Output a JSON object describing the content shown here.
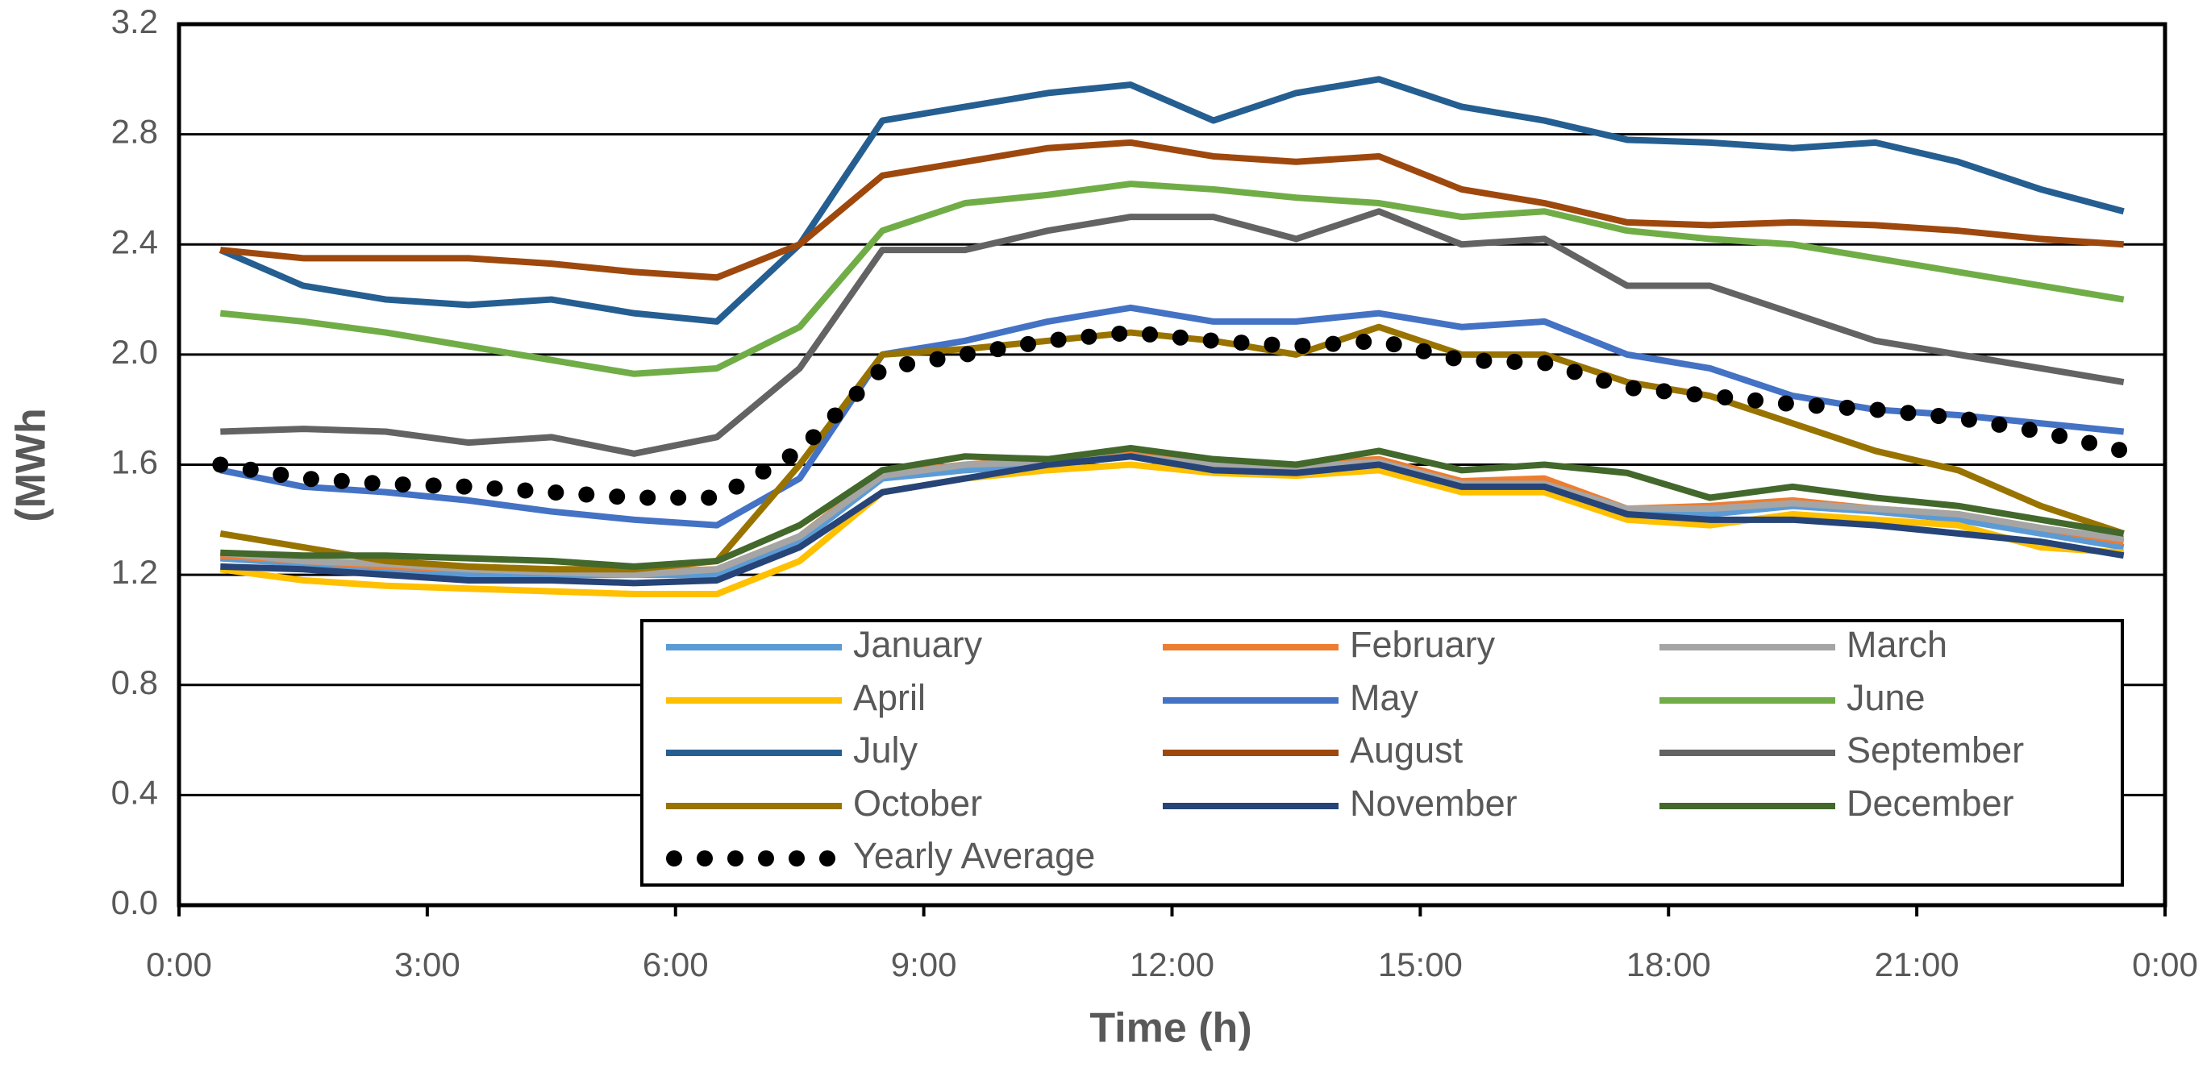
{
  "chart_data": {
    "type": "line",
    "y_label": "(MWh",
    "x_label": "Time (h)",
    "xlim": [
      0,
      24
    ],
    "xticks": [
      {
        "value": 0,
        "label": "0:00"
      },
      {
        "value": 3,
        "label": "3:00"
      },
      {
        "value": 6,
        "label": "6:00"
      },
      {
        "value": 9,
        "label": "9:00"
      },
      {
        "value": 12,
        "label": "12:00"
      },
      {
        "value": 15,
        "label": "15:00"
      },
      {
        "value": 18,
        "label": "18:00"
      },
      {
        "value": 21,
        "label": "21:00"
      },
      {
        "value": 24,
        "label": "0:00"
      }
    ],
    "ylim": [
      0,
      3.2
    ],
    "yticks": [
      {
        "value": 0,
        "label": "0.0"
      },
      0.4,
      {
        "value": 0.8,
        "label": "0.8"
      },
      {
        "value": 1.2,
        "label": "1.2"
      },
      {
        "value": 1.6,
        "label": "1.6"
      },
      {
        "value": 2,
        "label": "2.0"
      },
      2.4,
      2.8,
      3.2
    ],
    "grid": true,
    "legend": "bottom-right",
    "x": [
      0.5,
      1.5,
      2.5,
      3.5,
      4.5,
      5.5,
      6.5,
      7.5,
      8.5,
      9.5,
      10.5,
      11.5,
      12.5,
      13.5,
      14.5,
      15.5,
      16.5,
      17.5,
      18.5,
      19.5,
      20.5,
      21.5,
      22.5,
      23.5
    ],
    "series": [
      {
        "name": "January",
        "color": "#5b9bd5",
        "style": "solid",
        "values": [
          1.26,
          1.24,
          1.22,
          1.2,
          1.2,
          1.2,
          1.2,
          1.32,
          1.55,
          1.58,
          1.6,
          1.63,
          1.58,
          1.58,
          1.6,
          1.52,
          1.52,
          1.42,
          1.42,
          1.45,
          1.43,
          1.4,
          1.35,
          1.3
        ]
      },
      {
        "name": "February",
        "color": "#ed7d31",
        "style": "solid",
        "values": [
          1.27,
          1.25,
          1.23,
          1.22,
          1.21,
          1.21,
          1.22,
          1.34,
          1.57,
          1.6,
          1.62,
          1.64,
          1.6,
          1.6,
          1.62,
          1.54,
          1.55,
          1.44,
          1.45,
          1.47,
          1.44,
          1.42,
          1.37,
          1.32
        ]
      },
      {
        "name": "March",
        "color": "#a5a5a5",
        "style": "solid",
        "values": [
          1.28,
          1.25,
          1.24,
          1.22,
          1.21,
          1.2,
          1.22,
          1.34,
          1.56,
          1.6,
          1.61,
          1.63,
          1.6,
          1.59,
          1.61,
          1.53,
          1.53,
          1.44,
          1.44,
          1.46,
          1.44,
          1.42,
          1.37,
          1.33
        ]
      },
      {
        "name": "April",
        "color": "#ffc000",
        "style": "solid",
        "values": [
          1.22,
          1.18,
          1.16,
          1.15,
          1.14,
          1.13,
          1.13,
          1.25,
          1.5,
          1.55,
          1.58,
          1.6,
          1.57,
          1.56,
          1.58,
          1.5,
          1.5,
          1.4,
          1.38,
          1.42,
          1.4,
          1.38,
          1.3,
          1.28
        ]
      },
      {
        "name": "May",
        "color": "#4472c4",
        "style": "solid",
        "values": [
          1.58,
          1.52,
          1.5,
          1.47,
          1.43,
          1.4,
          1.38,
          1.55,
          2.0,
          2.05,
          2.12,
          2.17,
          2.12,
          2.12,
          2.15,
          2.1,
          2.12,
          2.0,
          1.95,
          1.85,
          1.8,
          1.78,
          1.75,
          1.72
        ]
      },
      {
        "name": "June",
        "color": "#70ad47",
        "style": "solid",
        "values": [
          2.15,
          2.12,
          2.08,
          2.03,
          1.98,
          1.93,
          1.95,
          2.1,
          2.45,
          2.55,
          2.58,
          2.62,
          2.6,
          2.57,
          2.55,
          2.5,
          2.52,
          2.45,
          2.42,
          2.4,
          2.35,
          2.3,
          2.25,
          2.2
        ]
      },
      {
        "name": "July",
        "color": "#255e91",
        "style": "solid",
        "values": [
          2.38,
          2.25,
          2.2,
          2.18,
          2.2,
          2.15,
          2.12,
          2.4,
          2.85,
          2.9,
          2.95,
          2.98,
          2.85,
          2.95,
          3.0,
          2.9,
          2.85,
          2.78,
          2.77,
          2.75,
          2.77,
          2.7,
          2.6,
          2.52
        ]
      },
      {
        "name": "August",
        "color": "#9e480e",
        "style": "solid",
        "values": [
          2.38,
          2.35,
          2.35,
          2.35,
          2.33,
          2.3,
          2.28,
          2.4,
          2.65,
          2.7,
          2.75,
          2.77,
          2.72,
          2.7,
          2.72,
          2.6,
          2.55,
          2.48,
          2.47,
          2.48,
          2.47,
          2.45,
          2.42,
          2.4
        ]
      },
      {
        "name": "September",
        "color": "#636363",
        "style": "solid",
        "values": [
          1.72,
          1.73,
          1.72,
          1.68,
          1.7,
          1.64,
          1.7,
          1.95,
          2.38,
          2.38,
          2.45,
          2.5,
          2.5,
          2.42,
          2.52,
          2.4,
          2.42,
          2.25,
          2.25,
          2.15,
          2.05,
          2.0,
          1.95,
          1.9
        ]
      },
      {
        "name": "October",
        "color": "#997300",
        "style": "solid",
        "values": [
          1.35,
          1.3,
          1.25,
          1.23,
          1.22,
          1.22,
          1.25,
          1.6,
          2.0,
          2.02,
          2.05,
          2.08,
          2.05,
          2.0,
          2.1,
          2.0,
          2.0,
          1.9,
          1.85,
          1.75,
          1.65,
          1.58,
          1.45,
          1.35
        ]
      },
      {
        "name": "November",
        "color": "#264478",
        "style": "solid",
        "values": [
          1.23,
          1.22,
          1.2,
          1.18,
          1.18,
          1.17,
          1.18,
          1.3,
          1.5,
          1.55,
          1.6,
          1.63,
          1.58,
          1.57,
          1.6,
          1.52,
          1.52,
          1.42,
          1.4,
          1.4,
          1.38,
          1.35,
          1.32,
          1.27
        ]
      },
      {
        "name": "December",
        "color": "#43682b",
        "style": "solid",
        "values": [
          1.28,
          1.27,
          1.27,
          1.26,
          1.25,
          1.23,
          1.25,
          1.38,
          1.58,
          1.63,
          1.62,
          1.66,
          1.62,
          1.6,
          1.65,
          1.58,
          1.6,
          1.57,
          1.48,
          1.52,
          1.48,
          1.45,
          1.4,
          1.35
        ]
      },
      {
        "name": "Yearly Average",
        "color": "#000000",
        "style": "dotted",
        "values": [
          1.6,
          1.55,
          1.53,
          1.52,
          1.5,
          1.48,
          1.48,
          1.65,
          1.95,
          2.0,
          2.05,
          2.08,
          2.05,
          2.03,
          2.05,
          1.98,
          1.97,
          1.88,
          1.85,
          1.82,
          1.8,
          1.77,
          1.72,
          1.65
        ]
      }
    ]
  }
}
